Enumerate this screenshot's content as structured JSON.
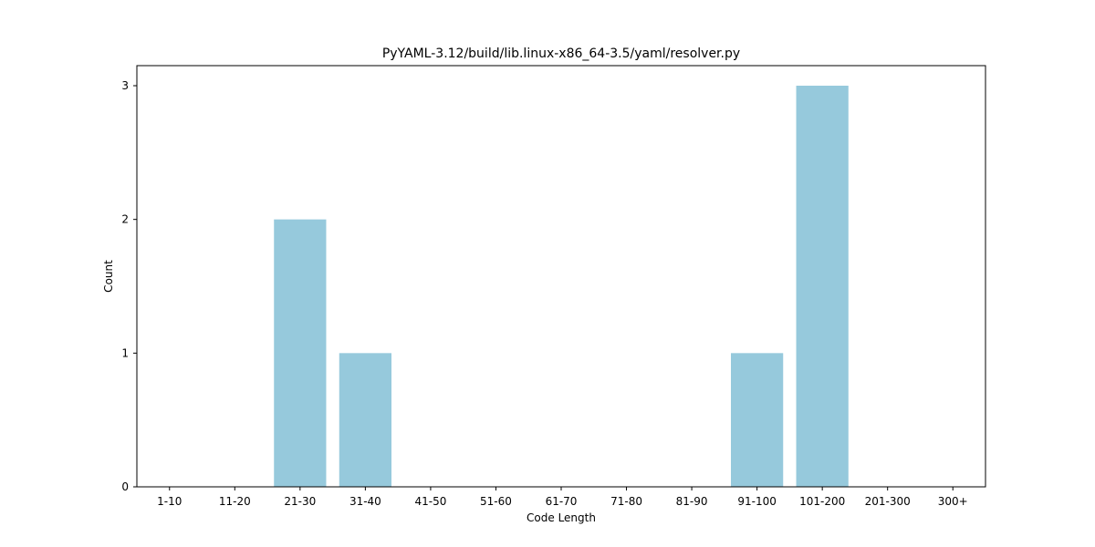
{
  "chart_data": {
    "type": "bar",
    "title": "PyYAML-3.12/build/lib.linux-x86_64-3.5/yaml/resolver.py",
    "xlabel": "Code Length",
    "ylabel": "Count",
    "categories": [
      "1-10",
      "11-20",
      "21-30",
      "31-40",
      "41-50",
      "51-60",
      "61-70",
      "71-80",
      "81-90",
      "91-100",
      "101-200",
      "201-300",
      "300+"
    ],
    "values": [
      0,
      0,
      2,
      1,
      0,
      0,
      0,
      0,
      0,
      1,
      3,
      0,
      0
    ],
    "yticks": [
      0,
      1,
      2,
      3
    ],
    "ylim": [
      0,
      3.15
    ],
    "grid": false,
    "bar_color": "#96c9dc"
  }
}
